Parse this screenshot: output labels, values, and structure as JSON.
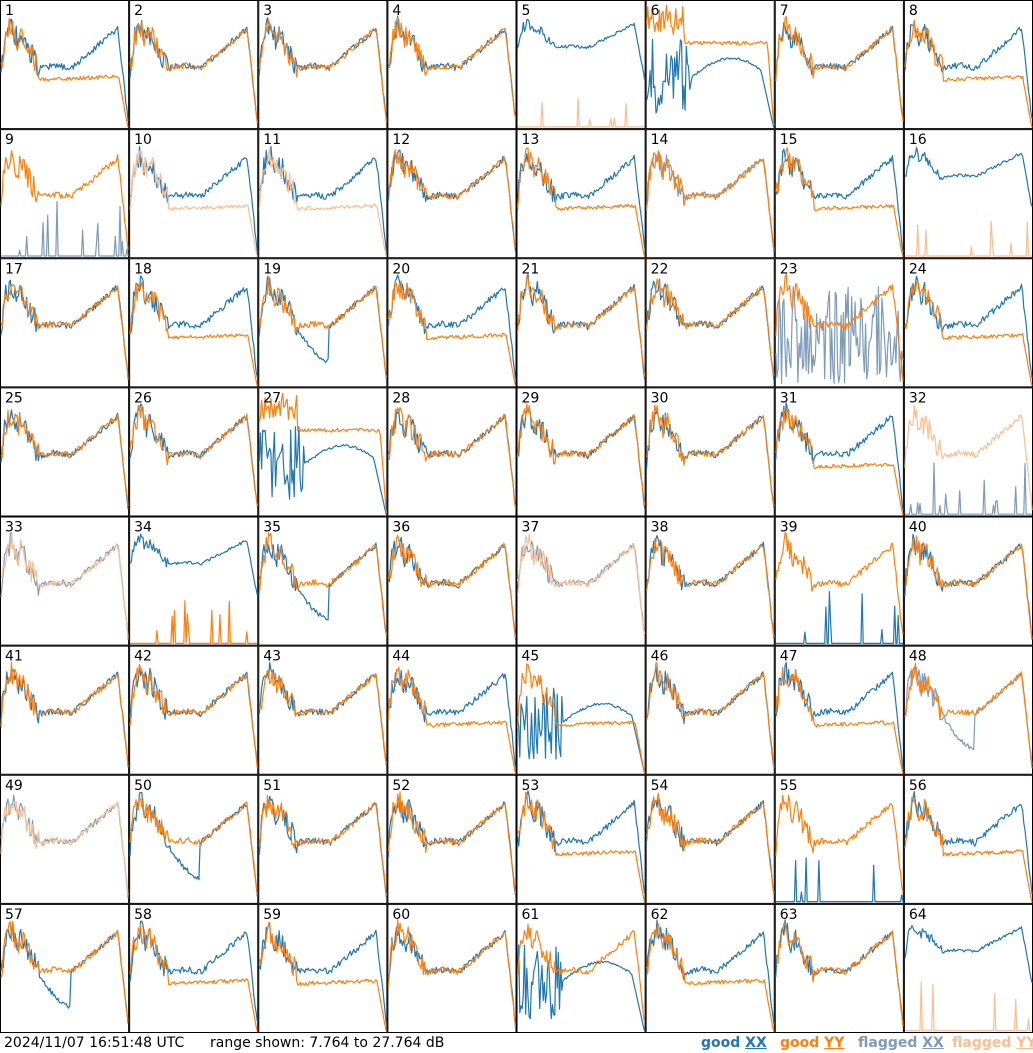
{
  "chart_data": {
    "type": "line",
    "title": "",
    "grid": {
      "rows": 8,
      "cols": 8
    },
    "y_range_db": [
      7.764,
      27.764
    ],
    "series_styles": [
      {
        "key": "good_xx",
        "label_prefix": "good",
        "label_pol": "XX",
        "color": "#1f77b4"
      },
      {
        "key": "good_yy",
        "label_prefix": "good",
        "label_pol": "YY",
        "color": "#ff7f0e"
      },
      {
        "key": "flagged_xx",
        "label_prefix": "flagged",
        "label_pol": "XX",
        "color": "#7e9bb7"
      },
      {
        "key": "flagged_yy",
        "label_prefix": "flagged",
        "label_pol": "YY",
        "color": "#f9bf93"
      }
    ],
    "panels": [
      {
        "label": "1",
        "xx": {
          "s": "typical",
          "f": false
        },
        "yy": {
          "s": "lowdrop",
          "f": false
        }
      },
      {
        "label": "2",
        "xx": {
          "s": "typical",
          "f": false
        },
        "yy": {
          "s": "typical",
          "f": false
        }
      },
      {
        "label": "3",
        "xx": {
          "s": "typical",
          "f": false
        },
        "yy": {
          "s": "typical",
          "f": false
        }
      },
      {
        "label": "4",
        "xx": {
          "s": "typical",
          "f": false
        },
        "yy": {
          "s": "typical",
          "f": false
        }
      },
      {
        "label": "5",
        "xx": {
          "s": "high",
          "f": false
        },
        "yy": {
          "s": "spike",
          "f": true
        }
      },
      {
        "label": "6",
        "xx": {
          "s": "crash",
          "f": false
        },
        "yy": {
          "s": "flathigh",
          "f": false
        }
      },
      {
        "label": "7",
        "xx": {
          "s": "typical",
          "f": false
        },
        "yy": {
          "s": "typical",
          "f": false
        }
      },
      {
        "label": "8",
        "xx": {
          "s": "typical",
          "f": false
        },
        "yy": {
          "s": "lowdrop",
          "f": false
        }
      },
      {
        "label": "9",
        "xx": {
          "s": "spike",
          "f": true
        },
        "yy": {
          "s": "typical",
          "f": false
        }
      },
      {
        "label": "10",
        "xx": {
          "s": "typical",
          "f": false
        },
        "yy": {
          "s": "lowdrop",
          "f": true
        }
      },
      {
        "label": "11",
        "xx": {
          "s": "typical",
          "f": false
        },
        "yy": {
          "s": "lowdrop",
          "f": true
        }
      },
      {
        "label": "12",
        "xx": {
          "s": "typical",
          "f": false
        },
        "yy": {
          "s": "typical",
          "f": false
        }
      },
      {
        "label": "13",
        "xx": {
          "s": "typical",
          "f": false
        },
        "yy": {
          "s": "lowdrop",
          "f": false
        }
      },
      {
        "label": "14",
        "xx": {
          "s": "typical",
          "f": true
        },
        "yy": {
          "s": "typical",
          "f": false
        }
      },
      {
        "label": "15",
        "xx": {
          "s": "typical",
          "f": false
        },
        "yy": {
          "s": "lowdrop",
          "f": false
        }
      },
      {
        "label": "16",
        "xx": {
          "s": "high",
          "f": false
        },
        "yy": {
          "s": "spike",
          "f": true
        }
      },
      {
        "label": "17",
        "xx": {
          "s": "typical",
          "f": false
        },
        "yy": {
          "s": "typical",
          "f": false
        }
      },
      {
        "label": "18",
        "xx": {
          "s": "typical",
          "f": false
        },
        "yy": {
          "s": "lowdrop",
          "f": false
        }
      },
      {
        "label": "19",
        "xx": {
          "s": "dip",
          "f": false
        },
        "yy": {
          "s": "typical",
          "f": false
        }
      },
      {
        "label": "20",
        "xx": {
          "s": "typical",
          "f": false
        },
        "yy": {
          "s": "lowdrop",
          "f": false
        }
      },
      {
        "label": "21",
        "xx": {
          "s": "typical",
          "f": false
        },
        "yy": {
          "s": "typical",
          "f": false
        }
      },
      {
        "label": "22",
        "xx": {
          "s": "typical",
          "f": false
        },
        "yy": {
          "s": "typical",
          "f": false
        }
      },
      {
        "label": "23",
        "xx": {
          "s": "noise",
          "f": true
        },
        "yy": {
          "s": "typical",
          "f": false
        }
      },
      {
        "label": "24",
        "xx": {
          "s": "typical",
          "f": false
        },
        "yy": {
          "s": "lowdrop",
          "f": false
        }
      },
      {
        "label": "25",
        "xx": {
          "s": "typical",
          "f": false
        },
        "yy": {
          "s": "typical",
          "f": false
        }
      },
      {
        "label": "26",
        "xx": {
          "s": "typical",
          "f": false
        },
        "yy": {
          "s": "typical",
          "f": false
        }
      },
      {
        "label": "27",
        "xx": {
          "s": "crash",
          "f": false
        },
        "yy": {
          "s": "flathigh",
          "f": false
        }
      },
      {
        "label": "28",
        "xx": {
          "s": "typical",
          "f": false
        },
        "yy": {
          "s": "typical",
          "f": false
        }
      },
      {
        "label": "29",
        "xx": {
          "s": "typical",
          "f": false
        },
        "yy": {
          "s": "typical",
          "f": false
        }
      },
      {
        "label": "30",
        "xx": {
          "s": "typical",
          "f": false
        },
        "yy": {
          "s": "typical",
          "f": false
        }
      },
      {
        "label": "31",
        "xx": {
          "s": "typical",
          "f": false
        },
        "yy": {
          "s": "lowdrop",
          "f": false
        }
      },
      {
        "label": "32",
        "xx": {
          "s": "spike",
          "f": true
        },
        "yy": {
          "s": "typical",
          "f": true
        }
      },
      {
        "label": "33",
        "xx": {
          "s": "typical",
          "f": true
        },
        "yy": {
          "s": "typical",
          "f": true
        }
      },
      {
        "label": "34",
        "xx": {
          "s": "high",
          "f": false
        },
        "yy": {
          "s": "spike",
          "f": false
        }
      },
      {
        "label": "35",
        "xx": {
          "s": "dip",
          "f": false
        },
        "yy": {
          "s": "typical",
          "f": false
        }
      },
      {
        "label": "36",
        "xx": {
          "s": "typical",
          "f": false
        },
        "yy": {
          "s": "typical",
          "f": false
        }
      },
      {
        "label": "37",
        "xx": {
          "s": "typical",
          "f": true
        },
        "yy": {
          "s": "typical",
          "f": true
        }
      },
      {
        "label": "38",
        "xx": {
          "s": "typical",
          "f": false
        },
        "yy": {
          "s": "typical",
          "f": false
        }
      },
      {
        "label": "39",
        "xx": {
          "s": "spike",
          "f": false
        },
        "yy": {
          "s": "typical",
          "f": false
        }
      },
      {
        "label": "40",
        "xx": {
          "s": "typical",
          "f": false
        },
        "yy": {
          "s": "typical",
          "f": false
        }
      },
      {
        "label": "41",
        "xx": {
          "s": "typical",
          "f": false
        },
        "yy": {
          "s": "typical",
          "f": false
        }
      },
      {
        "label": "42",
        "xx": {
          "s": "typical",
          "f": false
        },
        "yy": {
          "s": "typical",
          "f": false
        }
      },
      {
        "label": "43",
        "xx": {
          "s": "typical",
          "f": false
        },
        "yy": {
          "s": "typical",
          "f": false
        }
      },
      {
        "label": "44",
        "xx": {
          "s": "typical",
          "f": false
        },
        "yy": {
          "s": "lowdrop",
          "f": false
        }
      },
      {
        "label": "45",
        "xx": {
          "s": "crash",
          "f": false
        },
        "yy": {
          "s": "lowdrop",
          "f": false
        }
      },
      {
        "label": "46",
        "xx": {
          "s": "typical",
          "f": false
        },
        "yy": {
          "s": "typical",
          "f": false
        }
      },
      {
        "label": "47",
        "xx": {
          "s": "typical",
          "f": false
        },
        "yy": {
          "s": "lowdrop",
          "f": false
        }
      },
      {
        "label": "48",
        "xx": {
          "s": "dip",
          "f": true
        },
        "yy": {
          "s": "typical",
          "f": false
        }
      },
      {
        "label": "49",
        "xx": {
          "s": "typical",
          "f": true
        },
        "yy": {
          "s": "typical",
          "f": true
        }
      },
      {
        "label": "50",
        "xx": {
          "s": "dip",
          "f": false
        },
        "yy": {
          "s": "typical",
          "f": false
        }
      },
      {
        "label": "51",
        "xx": {
          "s": "typical",
          "f": false
        },
        "yy": {
          "s": "typical",
          "f": false
        }
      },
      {
        "label": "52",
        "xx": {
          "s": "typical",
          "f": false
        },
        "yy": {
          "s": "typical",
          "f": false
        }
      },
      {
        "label": "53",
        "xx": {
          "s": "typical",
          "f": false
        },
        "yy": {
          "s": "lowdrop",
          "f": false
        }
      },
      {
        "label": "54",
        "xx": {
          "s": "typical",
          "f": false
        },
        "yy": {
          "s": "typical",
          "f": false
        }
      },
      {
        "label": "55",
        "xx": {
          "s": "spike",
          "f": false
        },
        "yy": {
          "s": "typical",
          "f": false
        }
      },
      {
        "label": "56",
        "xx": {
          "s": "typical",
          "f": false
        },
        "yy": {
          "s": "lowdrop",
          "f": false
        }
      },
      {
        "label": "57",
        "xx": {
          "s": "dip",
          "f": false
        },
        "yy": {
          "s": "typical",
          "f": false
        }
      },
      {
        "label": "58",
        "xx": {
          "s": "typical",
          "f": false
        },
        "yy": {
          "s": "lowdrop",
          "f": false
        }
      },
      {
        "label": "59",
        "xx": {
          "s": "typical",
          "f": false
        },
        "yy": {
          "s": "lowdrop",
          "f": false
        }
      },
      {
        "label": "60",
        "xx": {
          "s": "typical",
          "f": false
        },
        "yy": {
          "s": "typical",
          "f": false
        }
      },
      {
        "label": "61",
        "xx": {
          "s": "crash",
          "f": false
        },
        "yy": {
          "s": "typical",
          "f": false
        }
      },
      {
        "label": "62",
        "xx": {
          "s": "typical",
          "f": false
        },
        "yy": {
          "s": "lowdrop",
          "f": false
        }
      },
      {
        "label": "63",
        "xx": {
          "s": "typical",
          "f": false
        },
        "yy": {
          "s": "typical",
          "f": false
        }
      },
      {
        "label": "64",
        "xx": {
          "s": "high",
          "f": false
        },
        "yy": {
          "s": "spike",
          "f": true
        }
      }
    ]
  },
  "footer": {
    "timestamp": "2024/11/07 16:51:48 UTC",
    "range_text": "range shown: 7.764 to 27.764 dB",
    "legend": [
      {
        "prefix": "good",
        "pol": "XX"
      },
      {
        "prefix": "good",
        "pol": "YY"
      },
      {
        "prefix": "flagged",
        "pol": "XX"
      },
      {
        "prefix": "flagged",
        "pol": "YY"
      }
    ]
  }
}
